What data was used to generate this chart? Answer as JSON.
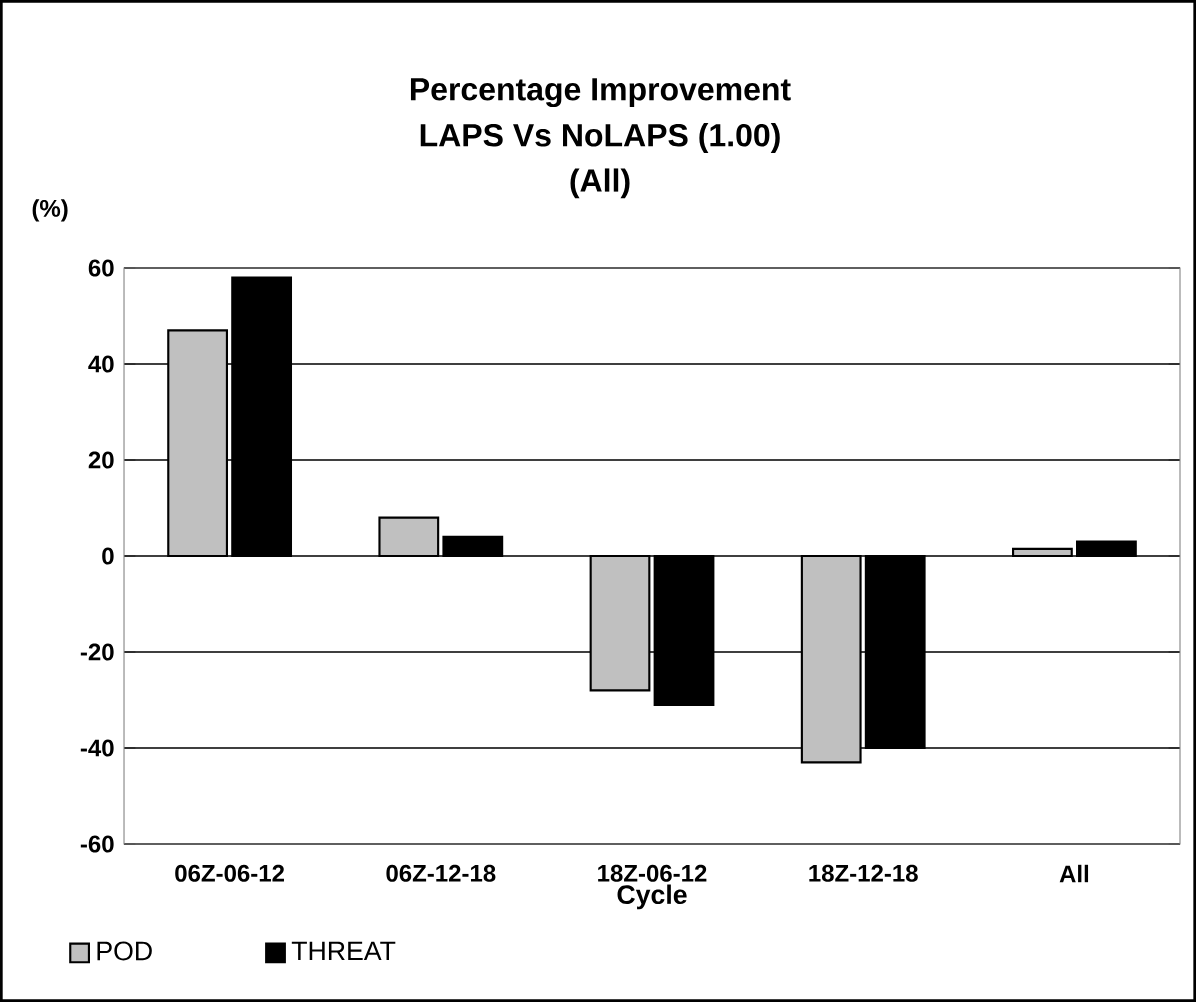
{
  "chart_data": {
    "type": "bar",
    "title": "Percentage Improvement",
    "subtitle": "LAPS Vs NoLAPS (1.00)",
    "annotations": [
      "(All)"
    ],
    "xlabel": "Cycle",
    "ylabel": "(%)",
    "categories": [
      "06Z-06-12",
      "06Z-12-18",
      "18Z-06-12",
      "18Z-12-18",
      "All"
    ],
    "series": [
      {
        "name": "POD",
        "color": "#c0c0c0",
        "values": [
          47,
          8,
          -28,
          -43,
          1.5
        ]
      },
      {
        "name": "THREAT",
        "color": "#000000",
        "values": [
          58,
          4,
          -31,
          -40,
          3
        ]
      }
    ],
    "ylim": [
      -60,
      60
    ],
    "yticks": [
      -60,
      -40,
      -20,
      0,
      20,
      40,
      60
    ],
    "grid": "y",
    "legend": "bottom left"
  }
}
